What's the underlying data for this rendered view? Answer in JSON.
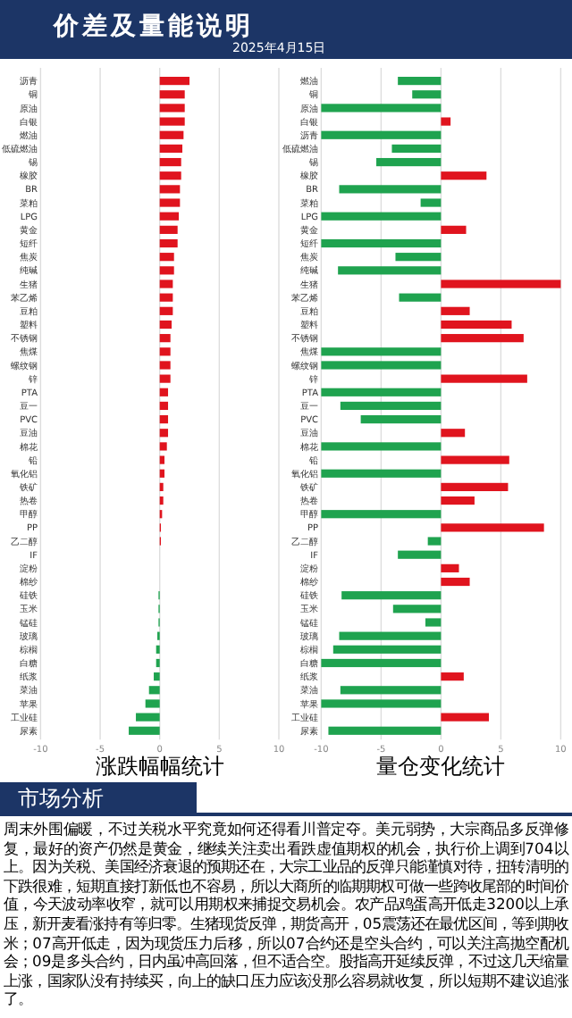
{
  "chart_data": [
    {
      "type": "bar",
      "orientation": "horizontal",
      "title": "价差及量能说明",
      "subtitle": "2025年4月15日",
      "annotations": [
        "涨跌幅幅统计"
      ],
      "categories": [
        "沥青",
        "铜",
        "原油",
        "白银",
        "燃油",
        "低硫燃油",
        "锡",
        "橡胶",
        "BR",
        "菜粕",
        "LPG",
        "黄金",
        "短纤",
        "焦炭",
        "纯碱",
        "生猪",
        "苯乙烯",
        "豆粕",
        "塑料",
        "不锈钢",
        "焦煤",
        "螺纹钢",
        "锌",
        "PTA",
        "豆一",
        "PVC",
        "豆油",
        "棉花",
        "铅",
        "氧化铝",
        "铁矿",
        "热卷",
        "甲醇",
        "PP",
        "乙二醇",
        "IF",
        "淀粉",
        "棉纱",
        "硅铁",
        "玉米",
        "锰硅",
        "玻璃",
        "棕榈",
        "白糖",
        "纸浆",
        "菜油",
        "苹果",
        "工业硅",
        "尿素"
      ],
      "values": [
        2.5,
        2.1,
        2.1,
        2.1,
        2.0,
        1.9,
        1.8,
        1.8,
        1.7,
        1.7,
        1.6,
        1.5,
        1.5,
        1.2,
        1.2,
        1.1,
        1.1,
        1.1,
        1.0,
        0.9,
        0.9,
        0.9,
        0.9,
        0.7,
        0.7,
        0.7,
        0.7,
        0.6,
        0.4,
        0.4,
        0.3,
        0.3,
        0.2,
        0.1,
        0.1,
        0,
        0,
        0,
        -0.1,
        -0.1,
        -0.1,
        -0.2,
        -0.3,
        -0.3,
        -0.5,
        -0.9,
        -1.2,
        -2.0,
        -2.6
      ],
      "colors": [
        "#e0141e",
        "#e0141e",
        "#e0141e",
        "#e0141e",
        "#e0141e",
        "#e0141e",
        "#e0141e",
        "#e0141e",
        "#e0141e",
        "#e0141e",
        "#e0141e",
        "#e0141e",
        "#e0141e",
        "#e0141e",
        "#e0141e",
        "#e0141e",
        "#e0141e",
        "#e0141e",
        "#e0141e",
        "#e0141e",
        "#e0141e",
        "#e0141e",
        "#e0141e",
        "#e0141e",
        "#e0141e",
        "#e0141e",
        "#e0141e",
        "#e0141e",
        "#e0141e",
        "#e0141e",
        "#e0141e",
        "#e0141e",
        "#e0141e",
        "#e0141e",
        "#e0141e",
        "#e0141e",
        "#e0141e",
        "#e0141e",
        "#1fa34f",
        "#1fa34f",
        "#1fa34f",
        "#1fa34f",
        "#1fa34f",
        "#1fa34f",
        "#1fa34f",
        "#1fa34f",
        "#1fa34f",
        "#1fa34f",
        "#1fa34f"
      ],
      "xlim": [
        -10,
        10
      ],
      "xticks": [
        -10,
        -5,
        0,
        5,
        10
      ],
      "grid": "x"
    },
    {
      "type": "bar",
      "orientation": "horizontal",
      "annotations": [
        "量仓变化统计"
      ],
      "categories": [
        "燃油",
        "铜",
        "原油",
        "白银",
        "沥青",
        "低硫燃油",
        "锡",
        "橡胶",
        "BR",
        "菜粕",
        "LPG",
        "黄金",
        "短纤",
        "焦炭",
        "纯碱",
        "生猪",
        "苯乙烯",
        "豆粕",
        "塑料",
        "不锈钢",
        "焦煤",
        "螺纹钢",
        "锌",
        "PTA",
        "豆一",
        "PVC",
        "豆油",
        "棉花",
        "铅",
        "氧化铝",
        "铁矿",
        "热卷",
        "甲醇",
        "PP",
        "乙二醇",
        "IF",
        "淀粉",
        "棉纱",
        "硅铁",
        "玉米",
        "锰硅",
        "玻璃",
        "棕榈",
        "白糖",
        "纸浆",
        "菜油",
        "苹果",
        "工业硅",
        "尿素"
      ],
      "values": [
        -3.6,
        -2.4,
        -10,
        0.8,
        -10,
        -4.1,
        -5.4,
        3.8,
        -8.5,
        -1.7,
        -10,
        2.1,
        -10,
        -3.8,
        -8.6,
        10,
        -3.5,
        2.4,
        5.9,
        6.9,
        -10,
        -10,
        7.2,
        -10,
        -8.4,
        -6.7,
        2.0,
        -10,
        5.7,
        -10,
        5.6,
        2.8,
        -10,
        8.6,
        -1.1,
        -3.6,
        1.5,
        2.4,
        -8.3,
        -4.0,
        -1.3,
        -8.5,
        -9.0,
        -10,
        1.9,
        -8.4,
        -10,
        4.0,
        -9.4
      ],
      "colors": [
        "#1fa34f",
        "#1fa34f",
        "#1fa34f",
        "#e0141e",
        "#1fa34f",
        "#1fa34f",
        "#1fa34f",
        "#e0141e",
        "#1fa34f",
        "#1fa34f",
        "#1fa34f",
        "#e0141e",
        "#1fa34f",
        "#1fa34f",
        "#1fa34f",
        "#e0141e",
        "#1fa34f",
        "#e0141e",
        "#e0141e",
        "#e0141e",
        "#1fa34f",
        "#1fa34f",
        "#e0141e",
        "#1fa34f",
        "#1fa34f",
        "#1fa34f",
        "#e0141e",
        "#1fa34f",
        "#e0141e",
        "#1fa34f",
        "#e0141e",
        "#e0141e",
        "#1fa34f",
        "#e0141e",
        "#1fa34f",
        "#1fa34f",
        "#e0141e",
        "#e0141e",
        "#1fa34f",
        "#1fa34f",
        "#1fa34f",
        "#1fa34f",
        "#1fa34f",
        "#1fa34f",
        "#e0141e",
        "#1fa34f",
        "#1fa34f",
        "#e0141e",
        "#1fa34f"
      ],
      "xlim": [
        -10,
        10
      ],
      "xticks": [
        -10,
        -5,
        0,
        5,
        10
      ],
      "grid": "x"
    },
    {
      "type": "other",
      "title": "市场分析",
      "annotations": [
        "周末外围偏暖，不过关税水平究竟如何还得看川普定夺。美元弱势，大宗商品多反弹修复，最好的资产仍然是黄金，继续关注卖出看跌虚值期权的机会，执行价上调到704以上。因为关税、美国经济衰退的预期还在，大宗工业品的反弹只能谨慎对待，扭转清明的下跌很难，短期直接打新低也不容易，所以大商所的临期期权可做一些跨收尾部的时间价值，今天波动率收窄，就可以用期权来捕捉交易机会。农产品鸡蛋高开低走3200以上承压，新开麦看涨持有等归零。生猪现货反弹，期货高开，05震荡还在最优区间，等到期收米；07高开低走，因为现货压力后移，所以07合约还是空头合约，可以关注高抛空配机会；09是多头合约，日内虽冲高回落，但不适合空。股指高开延续反弹，不过这几天缩量上涨，国家队没有持续买，向上的缺口压力应该没那么容易就收复，所以短期不建议追涨了。"
      ]
    }
  ]
}
